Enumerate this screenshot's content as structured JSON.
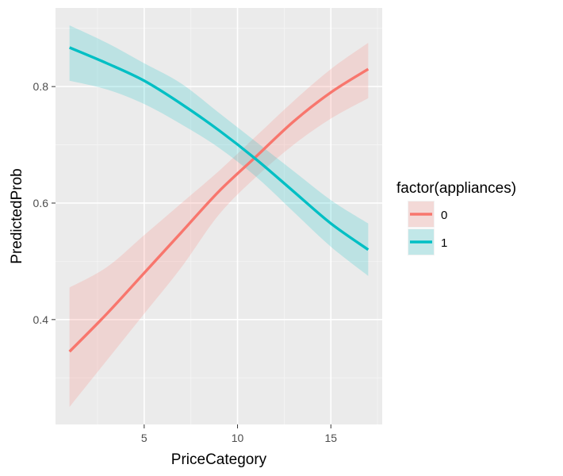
{
  "chart_data": {
    "type": "line",
    "title": "",
    "xlabel": "PriceCategory",
    "ylabel": "PredictedProb",
    "xlim": [
      0.25,
      17.75
    ],
    "ylim": [
      0.22,
      0.935
    ],
    "x_ticks": [
      5,
      10,
      15
    ],
    "y_ticks": [
      0.4,
      0.6,
      0.8
    ],
    "x_minor_ticks": [
      2.5,
      7.5,
      12.5,
      17.5
    ],
    "y_minor_ticks": [
      0.3,
      0.5,
      0.7,
      0.9
    ],
    "grid": true,
    "legend": {
      "title": "factor(appliances)",
      "placement": "right"
    },
    "series": [
      {
        "name": "0",
        "color": "#F8766D",
        "x": [
          1,
          3,
          5,
          7,
          9,
          11,
          13,
          15,
          17
        ],
        "y": [
          0.345,
          0.41,
          0.48,
          0.55,
          0.62,
          0.68,
          0.74,
          0.79,
          0.83
        ],
        "lower": [
          0.25,
          0.33,
          0.41,
          0.49,
          0.58,
          0.645,
          0.7,
          0.745,
          0.78
        ],
        "upper": [
          0.455,
          0.49,
          0.545,
          0.6,
          0.655,
          0.715,
          0.775,
          0.83,
          0.875
        ]
      },
      {
        "name": "1",
        "color": "#00BFC4",
        "x": [
          1,
          3,
          5,
          7,
          9,
          11,
          13,
          15,
          17
        ],
        "y": [
          0.867,
          0.84,
          0.81,
          0.77,
          0.725,
          0.675,
          0.62,
          0.565,
          0.52
        ],
        "lower": [
          0.81,
          0.795,
          0.77,
          0.735,
          0.695,
          0.645,
          0.585,
          0.525,
          0.475
        ],
        "upper": [
          0.905,
          0.875,
          0.84,
          0.805,
          0.755,
          0.705,
          0.655,
          0.605,
          0.565
        ]
      }
    ]
  }
}
